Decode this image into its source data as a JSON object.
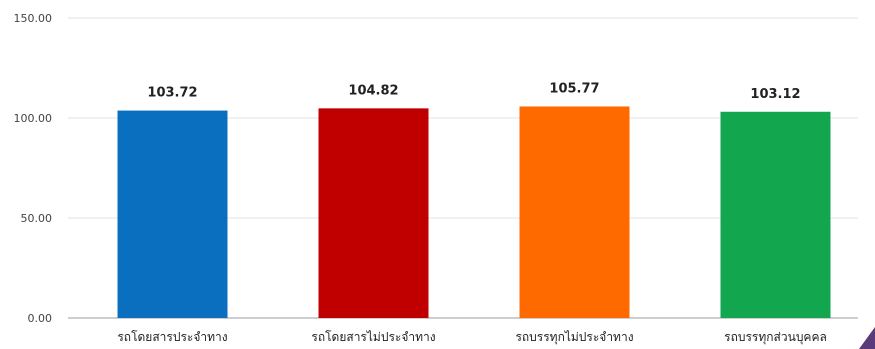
{
  "chart_data": {
    "type": "bar",
    "categories": [
      "รถโดยสารประจำทาง",
      "รถโดยสารไม่ประจำทาง",
      "รถบรรทุกไม่ประจำทาง",
      "รถบรรทุกส่วนบุคคล"
    ],
    "values": [
      103.72,
      104.82,
      105.77,
      103.12
    ],
    "value_labels": [
      "103.72",
      "104.82",
      "105.77",
      "103.12"
    ],
    "colors": [
      "#0b6fc0",
      "#c00000",
      "#ff6a00",
      "#12a64f"
    ],
    "ylim": [
      0,
      150
    ],
    "yticks": [
      0,
      50,
      100,
      150
    ],
    "ytick_labels": [
      "0.00",
      "50.00",
      "100.00",
      "150.00"
    ],
    "grid": true,
    "title": "",
    "xlabel": "",
    "ylabel": ""
  }
}
